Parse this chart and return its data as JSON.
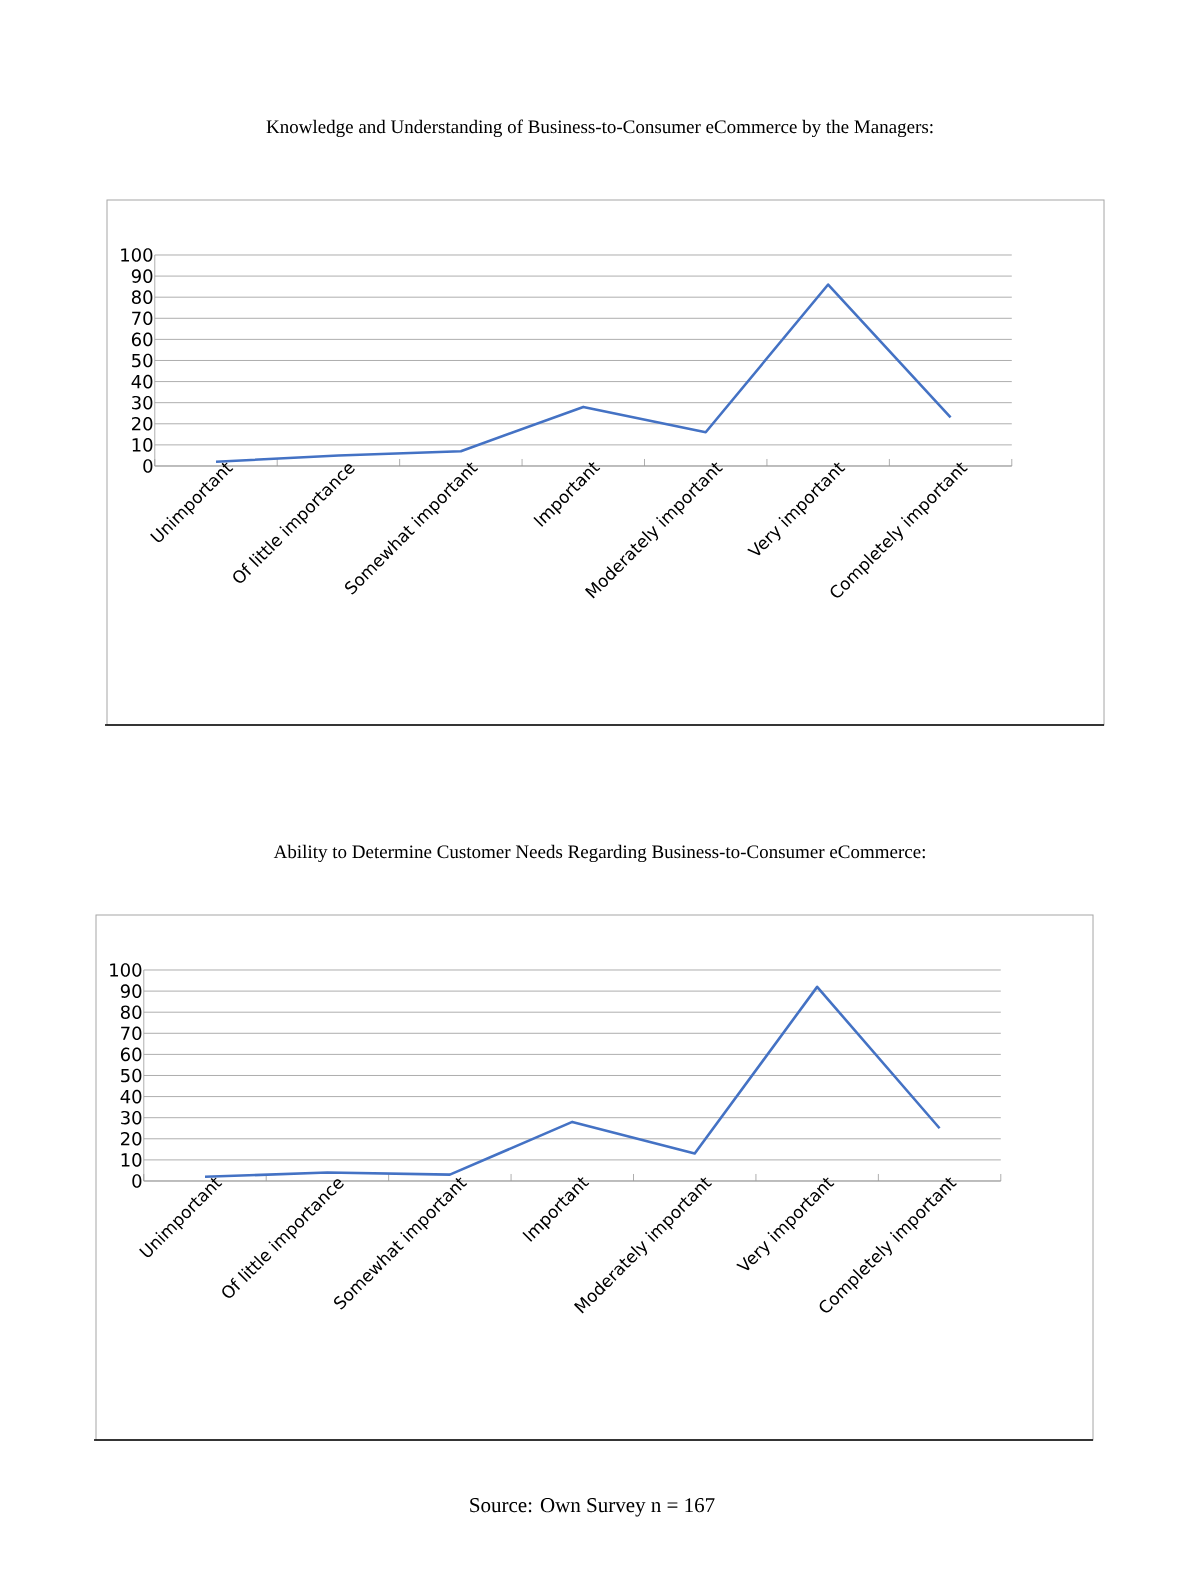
{
  "chart_data": [
    {
      "type": "line",
      "title": "Knowledge and Understanding of Business-to-Consumer eCommerce by the Managers:",
      "categories": [
        "Unimportant",
        "Of little importance",
        "Somewhat important",
        "Important",
        "Moderately important",
        "Very important",
        "Completely important"
      ],
      "series": [
        {
          "color": "#4472c4",
          "values": [
            2,
            5,
            7,
            28,
            16,
            86,
            23
          ]
        }
      ],
      "ylim": [
        0,
        100
      ],
      "yticks": [
        0,
        10,
        20,
        30,
        40,
        50,
        60,
        70,
        80,
        90,
        100
      ],
      "grid": "y",
      "marker": "none",
      "line_style": "solid"
    },
    {
      "type": "line",
      "title": "Ability to Determine Customer Needs Regarding Business-to-Consumer eCommerce:",
      "categories": [
        "Unimportant",
        "Of little importance",
        "Somewhat important",
        "Important",
        "Moderately important",
        "Very important",
        "Completely important"
      ],
      "series": [
        {
          "color": "#4472c4",
          "values": [
            2,
            4,
            3,
            28,
            13,
            92,
            25
          ]
        }
      ],
      "ylim": [
        0,
        100
      ],
      "yticks": [
        0,
        10,
        20,
        30,
        40,
        50,
        60,
        70,
        80,
        90,
        100
      ],
      "grid": "y",
      "marker": "none",
      "line_style": "solid",
      "annotations": [
        "Source: Own Survey n = 167"
      ]
    }
  ]
}
